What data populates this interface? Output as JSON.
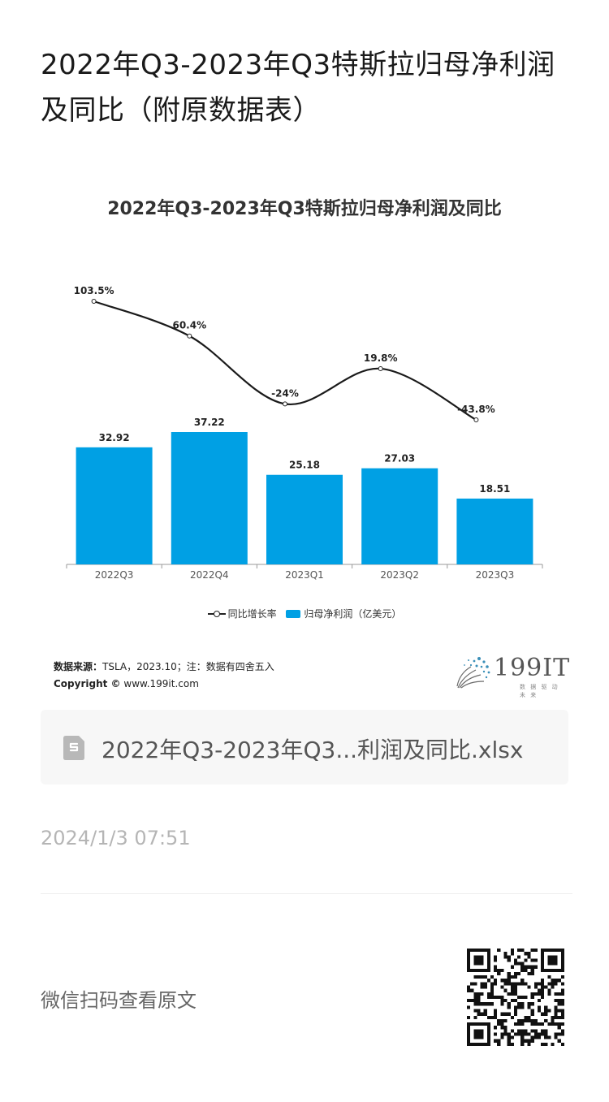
{
  "page": {
    "title": "2022年Q3-2023年Q3特斯拉归母净利润及同比（附原数据表）"
  },
  "chart_data": {
    "type": "bar",
    "title": "2022年Q3-2023年Q3特斯拉归母净利润及同比",
    "categories": [
      "2022Q3",
      "2022Q4",
      "2023Q1",
      "2023Q2",
      "2023Q3"
    ],
    "series": [
      {
        "name": "归母净利润（亿美元）",
        "type": "bar",
        "color": "#00a0e4",
        "values": [
          32.92,
          37.22,
          25.18,
          27.03,
          18.51
        ],
        "labels": [
          "32.92",
          "37.22",
          "25.18",
          "27.03",
          "18.51"
        ]
      },
      {
        "name": "同比增长率",
        "type": "line",
        "color": "#1a1a1a",
        "values": [
          103.5,
          60.4,
          -24,
          19.8,
          -43.8
        ],
        "labels": [
          "103.5%",
          "60.4%",
          "-24%",
          "19.8%",
          "-43.8%"
        ]
      }
    ],
    "legend": "bottom-center",
    "grid": false
  },
  "source": {
    "label": "数据来源：",
    "text": "TSLA，2023.10；注：数据有四舍五入",
    "copyright_label": "Copyright ©",
    "copyright_site": "www.199it.com"
  },
  "logo": {
    "name": "199IT",
    "slogan": "数 据 驱 动 未 来",
    "icon": "dandelion-dots-icon"
  },
  "file": {
    "icon": "spreadsheet-file-icon",
    "name": "2022年Q3-2023年Q3...利润及同比.xlsx"
  },
  "timestamp": "2024/1/3 07:51",
  "footer": {
    "scan_text": "微信扫码查看原文",
    "qr_icon": "qr-code-icon"
  }
}
